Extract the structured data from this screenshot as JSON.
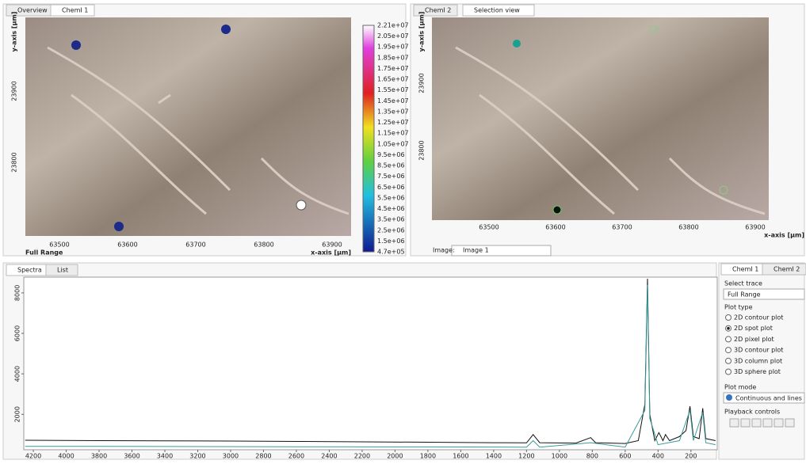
{
  "left_panel": {
    "tabs": [
      "Overview",
      "ChemI 1"
    ],
    "y_axis_label": "y-axis [µm]",
    "y_ticks": [
      "23900",
      "23800"
    ],
    "x_ticks": [
      "63500",
      "63600",
      "63700",
      "63800",
      "63900"
    ],
    "x_axis_label": "x-axis [µm]",
    "trace_label": "Full Range",
    "colorbar": [
      "2.21e+07",
      "2.05e+07",
      "1.95e+07",
      "1.85e+07",
      "1.75e+07",
      "1.65e+07",
      "1.55e+07",
      "1.45e+07",
      "1.35e+07",
      "1.25e+07",
      "1.15e+07",
      "1.05e+07",
      "9.5e+06",
      "8.5e+06",
      "7.5e+06",
      "6.5e+06",
      "5.5e+06",
      "4.5e+06",
      "3.5e+06",
      "2.5e+06",
      "1.5e+06",
      "4.7e+05"
    ]
  },
  "right_panel": {
    "tabs": [
      "ChemI 2",
      "Selection view"
    ],
    "y_axis_label": "y-axis [µm]",
    "y_ticks": [
      "23900",
      "23800"
    ],
    "x_ticks": [
      "63500",
      "63600",
      "63700",
      "63800",
      "63900"
    ],
    "x_axis_label": "x-axis [µm]",
    "image_label": "Image:",
    "image_value": "Image 1"
  },
  "bottom_tabs": [
    "Spectra",
    "List"
  ],
  "spectrum": {
    "type": "line",
    "xlim": [
      4258,
      40
    ],
    "ylim": [
      250,
      8700
    ],
    "xticks": [
      4200,
      4000,
      3800,
      3600,
      3400,
      3200,
      3000,
      2800,
      2600,
      2400,
      2200,
      2000,
      1800,
      1600,
      1400,
      1200,
      1000,
      800,
      600,
      400,
      200
    ],
    "yticks": [
      2000,
      4000,
      6000,
      8000
    ],
    "series": [
      {
        "color": "#111111",
        "x": [
          4250,
          3800,
          3400,
          3000,
          2600,
          2200,
          1800,
          1400,
          1200,
          1160,
          1120,
          900,
          810,
          780,
          600,
          520,
          480,
          464,
          450,
          420,
          395,
          370,
          355,
          330,
          270,
          230,
          206,
          185,
          150,
          128,
          110,
          50
        ],
        "values": [
          720,
          700,
          690,
          680,
          660,
          640,
          620,
          600,
          590,
          1000,
          600,
          580,
          850,
          600,
          560,
          700,
          2500,
          8700,
          2000,
          700,
          1100,
          700,
          1000,
          700,
          900,
          1200,
          2400,
          900,
          800,
          2300,
          800,
          700
        ]
      },
      {
        "color": "#3a9a9a",
        "x": [
          4250,
          3400,
          2600,
          1800,
          1200,
          1160,
          1120,
          810,
          600,
          480,
          464,
          450,
          400,
          270,
          206,
          185,
          128,
          110,
          50
        ],
        "values": [
          420,
          410,
          400,
          390,
          380,
          700,
          380,
          600,
          380,
          2200,
          8400,
          1800,
          500,
          700,
          2200,
          700,
          2100,
          600,
          500
        ]
      }
    ]
  },
  "side_panel": {
    "tabs": [
      "ChemI 1",
      "ChemI 2"
    ],
    "select_trace_label": "Select trace",
    "select_trace_value": "Full Range",
    "plot_type_label": "Plot type",
    "plot_types": [
      "2D contour plot",
      "2D spot plot",
      "2D pixel plot",
      "3D contour plot",
      "3D column plot",
      "3D sphere plot"
    ],
    "selected_plot_type": 1,
    "plot_mode_label": "Plot mode",
    "plot_mode_value": "Continuous and lines",
    "playback_label": "Playback controls"
  }
}
